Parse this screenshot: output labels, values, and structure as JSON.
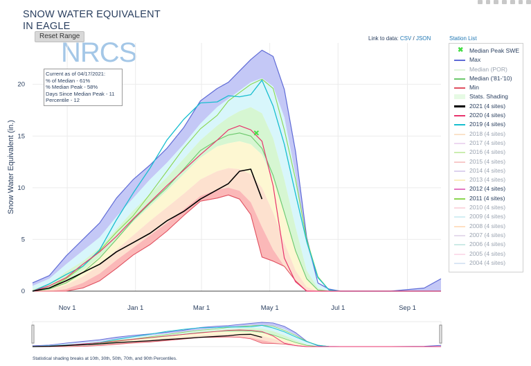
{
  "title": "SNOW WATER EQUIVALENT IN EAGLE",
  "reset_label": "Reset Range",
  "links": {
    "prefix": "Link to data: ",
    "csv": "CSV",
    "sep": " / ",
    "json": "JSON"
  },
  "station_list": "Station List",
  "logo_text": "NRCS",
  "info_box": {
    "line1": "Current as of 04/17/2021:",
    "line2": "% of Median - 61%",
    "line3": "% Median Peak - 58%",
    "line4": "Days Since Median Peak - 11",
    "line5": "Percentile - 12"
  },
  "footnote": "Statistical shading breaks at 10th, 30th, 50th, 70th, and 90th Percentiles.",
  "colors": {
    "max": "#5f6bd6",
    "median_por": "#b8e6b0",
    "median_8110": "#6cc86c",
    "min": "#e05060",
    "shade_max": "#c4c8f6",
    "shade_90": "#d8f6fb",
    "shade_70": "#d6f6d2",
    "shade_50": "#fdf7d2",
    "shade_30": "#fde1cf",
    "shade_10": "#fbb8b8",
    "y2021": "#000000",
    "y2020": "#e8336d",
    "y2019": "#17becf",
    "y2011": "#8bd650"
  },
  "legend": [
    {
      "label": "Median Peak SWE",
      "kind": "marker",
      "color": "#44dd44",
      "active": true
    },
    {
      "label": "Max",
      "kind": "line",
      "color": "#5f6bd6",
      "active": true
    },
    {
      "label": "Median (POR)",
      "kind": "line",
      "color": "#b8e6b0",
      "active": false
    },
    {
      "label": "Median ('81-'10)",
      "kind": "line",
      "color": "#6cc86c",
      "active": true
    },
    {
      "label": "Min",
      "kind": "line",
      "color": "#e05060",
      "active": true
    },
    {
      "label": "Stats. Shading",
      "kind": "shade",
      "color": "#d6f6d2",
      "active": true
    },
    {
      "label": "2021 (4 sites)",
      "kind": "thick",
      "color": "#000000",
      "active": true
    },
    {
      "label": "2020 (4 sites)",
      "kind": "line",
      "color": "#e8336d",
      "active": true
    },
    {
      "label": "2019 (4 sites)",
      "kind": "line",
      "color": "#17becf",
      "active": true
    },
    {
      "label": "2018 (4 sites)",
      "kind": "line",
      "color": "#f5c18a",
      "active": false
    },
    {
      "label": "2017 (4 sites)",
      "kind": "line",
      "color": "#d6a8e0",
      "active": false
    },
    {
      "label": "2016 (4 sites)",
      "kind": "line",
      "color": "#8bd650",
      "active": false
    },
    {
      "label": "2015 (4 sites)",
      "kind": "line",
      "color": "#f08a8a",
      "active": false
    },
    {
      "label": "2014 (4 sites)",
      "kind": "line",
      "color": "#b19cd9",
      "active": false
    },
    {
      "label": "2013 (4 sites)",
      "kind": "line",
      "color": "#f5d76e",
      "active": false
    },
    {
      "label": "2012 (4 sites)",
      "kind": "line",
      "color": "#e377c2",
      "active": true
    },
    {
      "label": "2011 (4 sites)",
      "kind": "line",
      "color": "#8bd650",
      "active": true
    },
    {
      "label": "2010 (4 sites)",
      "kind": "line",
      "color": "#f7a8b8",
      "active": false
    },
    {
      "label": "2009 (4 sites)",
      "kind": "line",
      "color": "#9edae5",
      "active": false
    },
    {
      "label": "2008 (4 sites)",
      "kind": "line",
      "color": "#ffbb78",
      "active": false
    },
    {
      "label": "2007 (4 sites)",
      "kind": "line",
      "color": "#c5b0d5",
      "active": false
    },
    {
      "label": "2006 (4 sites)",
      "kind": "line",
      "color": "#8fd0c8",
      "active": false
    },
    {
      "label": "2005 (4 sites)",
      "kind": "line",
      "color": "#f7b6d2",
      "active": false
    },
    {
      "label": "2004 (4 sites)",
      "kind": "line",
      "color": "#aec7e8",
      "active": false
    }
  ],
  "chart_data": {
    "type": "area",
    "title": "SNOW WATER EQUIVALENT IN EAGLE",
    "xlabel": "",
    "ylabel": "Snow Water Equivalent (in.)",
    "x_ticks": [
      "Nov 1",
      "Jan 1",
      "Mar 1",
      "May 1",
      "Jul 1",
      "Sep 1"
    ],
    "x_tick_days": [
      31,
      92,
      151,
      212,
      273,
      335
    ],
    "xlim_days": [
      0,
      365
    ],
    "ylim": [
      0,
      24
    ],
    "y_ticks": [
      0,
      5,
      10,
      15,
      20
    ],
    "grid": true,
    "legend_position": "right",
    "median_peak": {
      "day": 200,
      "value": 15.3
    },
    "x": [
      0,
      15,
      30,
      45,
      60,
      75,
      90,
      105,
      120,
      135,
      150,
      165,
      175,
      185,
      195,
      205,
      215,
      225,
      235,
      245,
      255,
      265,
      275,
      290,
      320,
      350,
      365
    ],
    "series": [
      {
        "name": "Max",
        "values": [
          0.8,
          1.5,
          3.4,
          5.0,
          6.6,
          9.0,
          10.8,
          12.2,
          13.8,
          15.8,
          18.4,
          19.6,
          20.2,
          21.3,
          22.4,
          23.3,
          22.7,
          19.5,
          13.5,
          5.2,
          0.8,
          0.2,
          0.0,
          0.0,
          0.0,
          0.3,
          1.2
        ]
      },
      {
        "name": "Median ('81-'10)",
        "values": [
          0.0,
          0.2,
          0.8,
          1.8,
          3.2,
          5.0,
          6.9,
          8.5,
          10.0,
          11.8,
          13.6,
          14.6,
          15.1,
          15.3,
          15.0,
          13.8,
          11.2,
          7.6,
          3.9,
          1.2,
          0.1,
          0.0,
          0.0,
          0.0,
          0.0,
          0.0,
          0.0
        ]
      },
      {
        "name": "Min",
        "values": [
          0.0,
          0.0,
          0.0,
          0.3,
          1.0,
          2.2,
          3.5,
          4.5,
          5.8,
          7.3,
          8.7,
          9.0,
          9.3,
          8.9,
          7.4,
          3.3,
          2.9,
          2.4,
          1.0,
          0.0,
          0.0,
          0.0,
          0.0,
          0.0,
          0.0,
          0.0,
          0.0
        ]
      },
      {
        "name": "2021 (4 sites)",
        "values": [
          0.0,
          0.3,
          1.0,
          1.8,
          2.6,
          3.8,
          4.7,
          5.6,
          6.8,
          7.7,
          8.9,
          9.8,
          10.4,
          11.6,
          11.8,
          8.9,
          null,
          null,
          null,
          null,
          null,
          null,
          null,
          null,
          null,
          null,
          null
        ]
      },
      {
        "name": "2020 (4 sites)",
        "values": [
          0.0,
          0.5,
          1.3,
          2.6,
          3.8,
          5.3,
          7.0,
          8.6,
          10.2,
          11.7,
          13.2,
          14.6,
          15.6,
          16.0,
          15.6,
          14.5,
          10.2,
          3.2,
          0.9,
          0.0,
          0.0,
          0.0,
          0.0,
          0.0,
          0.0,
          0.0,
          0.0
        ]
      },
      {
        "name": "2019 (4 sites)",
        "values": [
          0.0,
          0.7,
          1.6,
          2.4,
          4.0,
          6.9,
          9.5,
          11.9,
          14.6,
          16.6,
          18.2,
          18.3,
          18.9,
          18.8,
          19.0,
          20.4,
          17.9,
          14.2,
          9.4,
          4.8,
          1.3,
          0.1,
          0.0,
          0.0,
          0.0,
          0.0,
          0.0
        ]
      },
      {
        "name": "2011 (4 sites)",
        "values": [
          0.0,
          0.3,
          1.2,
          2.4,
          3.9,
          5.7,
          7.3,
          9.4,
          11.6,
          13.8,
          15.7,
          17.0,
          18.4,
          19.2,
          20.0,
          20.5,
          19.6,
          15.6,
          10.8,
          5.0,
          1.4,
          0.1,
          0.0,
          0.0,
          0.0,
          0.0,
          0.0
        ]
      },
      {
        "name": "Shading 90th",
        "values": [
          0.5,
          1.2,
          2.6,
          3.9,
          5.2,
          7.2,
          9.0,
          10.8,
          12.4,
          14.2,
          16.2,
          17.8,
          18.6,
          19.4,
          20.2,
          20.6,
          19.8,
          16.8,
          11.2,
          4.6,
          0.7,
          0.1,
          0.0,
          0.0,
          0.0,
          0.0,
          0.0
        ]
      },
      {
        "name": "Shading 70th",
        "values": [
          0.2,
          0.7,
          1.9,
          2.9,
          4.2,
          6.0,
          7.8,
          9.4,
          11.0,
          12.8,
          14.6,
          16.0,
          16.8,
          17.4,
          17.8,
          17.2,
          14.8,
          10.8,
          6.2,
          2.0,
          0.3,
          0.0,
          0.0,
          0.0,
          0.0,
          0.0,
          0.0
        ]
      },
      {
        "name": "Shading 50th",
        "values": [
          0.0,
          0.3,
          1.0,
          2.0,
          3.3,
          5.0,
          6.7,
          8.2,
          9.7,
          11.3,
          12.9,
          14.0,
          14.3,
          14.5,
          14.2,
          13.2,
          10.8,
          7.4,
          3.8,
          1.1,
          0.1,
          0.0,
          0.0,
          0.0,
          0.0,
          0.0,
          0.0
        ]
      },
      {
        "name": "Shading 30th",
        "values": [
          0.0,
          0.1,
          0.6,
          1.4,
          2.5,
          4.0,
          5.4,
          6.8,
          8.1,
          9.4,
          10.8,
          11.6,
          11.9,
          11.8,
          11.3,
          10.0,
          7.6,
          4.7,
          2.0,
          0.4,
          0.0,
          0.0,
          0.0,
          0.0,
          0.0,
          0.0,
          0.0
        ]
      },
      {
        "name": "Shading 10th",
        "values": [
          0.0,
          0.0,
          0.2,
          0.8,
          1.7,
          3.0,
          4.2,
          5.4,
          6.6,
          7.9,
          9.2,
          9.8,
          10.0,
          9.7,
          8.6,
          6.2,
          4.0,
          2.4,
          1.0,
          0.1,
          0.0,
          0.0,
          0.0,
          0.0,
          0.0,
          0.0,
          0.0
        ]
      }
    ]
  }
}
